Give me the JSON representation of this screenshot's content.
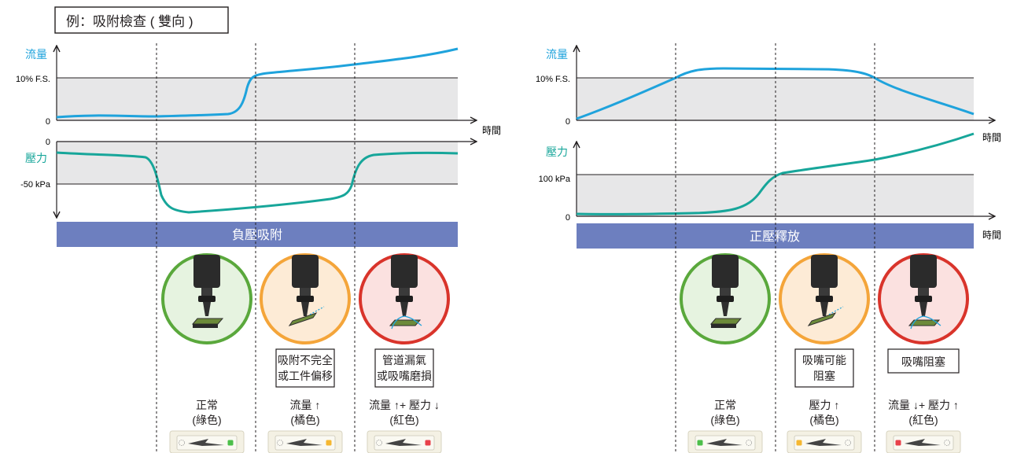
{
  "title": "例：吸附檢查 ( 雙向 )",
  "colors": {
    "flow_curve": "#1fa3dc",
    "pressure_curve": "#17a69a",
    "band_fill": "#e7e7e8",
    "phase_bar": "#6d7fbf",
    "green": "#5aa83c",
    "orange": "#f4a53a",
    "red": "#d9342b"
  },
  "left_panel": {
    "flow_label": "流量",
    "flow_threshold_label": "10% F.S.",
    "flow_zero_label": "0",
    "time_label": "時間",
    "pressure_zero_label": "0",
    "pressure_label": "壓力",
    "pressure_threshold_label": "-50 kPa",
    "phase_label": "負壓吸附",
    "cases": [
      {
        "state": "green",
        "problem": [],
        "result_line1": "正常",
        "result_line2": "(綠色)"
      },
      {
        "state": "orange",
        "problem": [
          "吸附不完全",
          "或工件偏移"
        ],
        "result_line1": "流量 ↑",
        "result_line2": "(橘色)"
      },
      {
        "state": "red",
        "problem": [
          "管道漏氣",
          "或吸嘴磨損"
        ],
        "result_line1": "流量 ↑+ 壓力 ↓",
        "result_line2": "(紅色)"
      }
    ]
  },
  "right_panel": {
    "flow_label": "流量",
    "flow_threshold_label": "10% F.S.",
    "flow_zero_label": "0",
    "time_label_flow": "時間",
    "pressure_label": "壓力",
    "pressure_threshold_label": "100 kPa",
    "pressure_zero_label": "0",
    "time_label_pressure": "時間",
    "phase_label": "正壓釋放",
    "cases": [
      {
        "state": "green",
        "problem": [],
        "result_line1": "正常",
        "result_line2": "(綠色)"
      },
      {
        "state": "orange",
        "problem": [
          "吸嘴可能",
          "阻塞"
        ],
        "result_line1": "壓力 ↑",
        "result_line2": "(橘色)"
      },
      {
        "state": "red",
        "problem": [
          "吸嘴阻塞"
        ],
        "result_line1": "流量 ↓+ 壓力 ↑",
        "result_line2": "(紅色)"
      }
    ]
  }
}
